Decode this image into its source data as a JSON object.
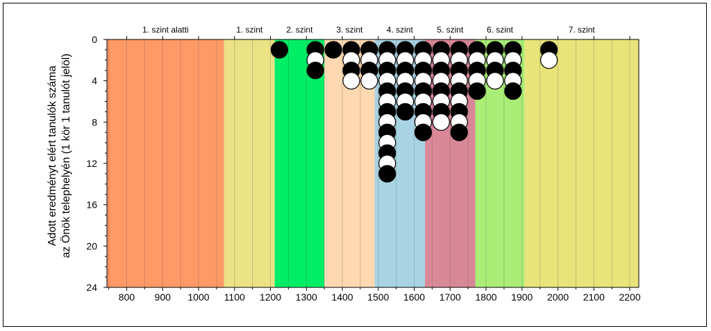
{
  "chart_data": {
    "type": "scatter",
    "title": "",
    "ylabel": [
      "Adott eredményt elért tanulók száma",
      "az Önök telephelyén (1 kör 1 tanulót jelöl)"
    ],
    "xlabel": "",
    "xlim": [
      745,
      2225
    ],
    "ylim": [
      0,
      24
    ],
    "y_inverted": true,
    "x_ticks": [
      800,
      900,
      1000,
      1100,
      1200,
      1300,
      1400,
      1500,
      1600,
      1700,
      1800,
      1900,
      2000,
      2100,
      2200
    ],
    "y_ticks": [
      0,
      4,
      8,
      12,
      16,
      20,
      24
    ],
    "bands": [
      {
        "label": "1. szint alatti",
        "from": 745,
        "to": 1071,
        "color": "#ff9966"
      },
      {
        "label": "1. szint",
        "from": 1071,
        "to": 1212,
        "color": "#ebe185"
      },
      {
        "label": "2. szint",
        "from": 1212,
        "to": 1350,
        "color": "#00ee66"
      },
      {
        "label": "3. szint",
        "from": 1350,
        "to": 1490,
        "color": "#fdd8b0"
      },
      {
        "label": "4. szint",
        "from": 1490,
        "to": 1630,
        "color": "#a8d3e2"
      },
      {
        "label": "5. szint",
        "from": 1630,
        "to": 1770,
        "color": "#d98898"
      },
      {
        "label": "6. szint",
        "from": 1770,
        "to": 1907,
        "color": "#aaee77"
      },
      {
        "label": "7. szint",
        "from": 1907,
        "to": 2225,
        "color": "#e8e47a"
      }
    ],
    "grid_x_step": 50,
    "series": [
      {
        "x": 1225,
        "count": 1
      },
      {
        "x": 1325,
        "count": 3
      },
      {
        "x": 1375,
        "count": 1
      },
      {
        "x": 1425,
        "count": 4
      },
      {
        "x": 1475,
        "count": 4
      },
      {
        "x": 1525,
        "count": 13
      },
      {
        "x": 1575,
        "count": 7
      },
      {
        "x": 1625,
        "count": 9
      },
      {
        "x": 1675,
        "count": 8
      },
      {
        "x": 1725,
        "count": 9
      },
      {
        "x": 1775,
        "count": 5
      },
      {
        "x": 1825,
        "count": 4
      },
      {
        "x": 1875,
        "count": 5
      },
      {
        "x": 1975,
        "count": 2
      }
    ],
    "marker_colors": {
      "odd": "#000000",
      "even": "#ffffff",
      "stroke": "#000000"
    }
  }
}
